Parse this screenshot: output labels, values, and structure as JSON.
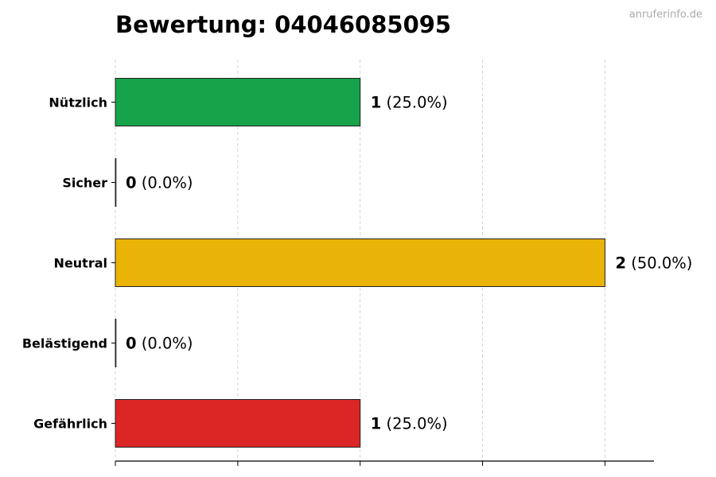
{
  "watermark": "anruferinfo.de",
  "chart_data": {
    "type": "bar",
    "orientation": "horizontal",
    "title": "Bewertung: 04046085095",
    "categories": [
      "Nützlich",
      "Sicher",
      "Neutral",
      "Belästigend",
      "Gefährlich"
    ],
    "values": [
      1,
      0,
      2,
      0,
      1
    ],
    "labels": [
      {
        "count": "1",
        "pct": "(25.0%)"
      },
      {
        "count": "0",
        "pct": "(0.0%)"
      },
      {
        "count": "2",
        "pct": "(50.0%)"
      },
      {
        "count": "0",
        "pct": "(0.0%)"
      },
      {
        "count": "1",
        "pct": "(25.0%)"
      }
    ],
    "colors": [
      "#16a34a",
      "#22c55e",
      "#eab308",
      "#f97316",
      "#dc2626"
    ],
    "xlim": [
      0,
      2.2
    ],
    "xticks": [
      0,
      0.5,
      1,
      1.5,
      2
    ],
    "grid": "vertical dashed",
    "xlabel": "",
    "ylabel": ""
  }
}
